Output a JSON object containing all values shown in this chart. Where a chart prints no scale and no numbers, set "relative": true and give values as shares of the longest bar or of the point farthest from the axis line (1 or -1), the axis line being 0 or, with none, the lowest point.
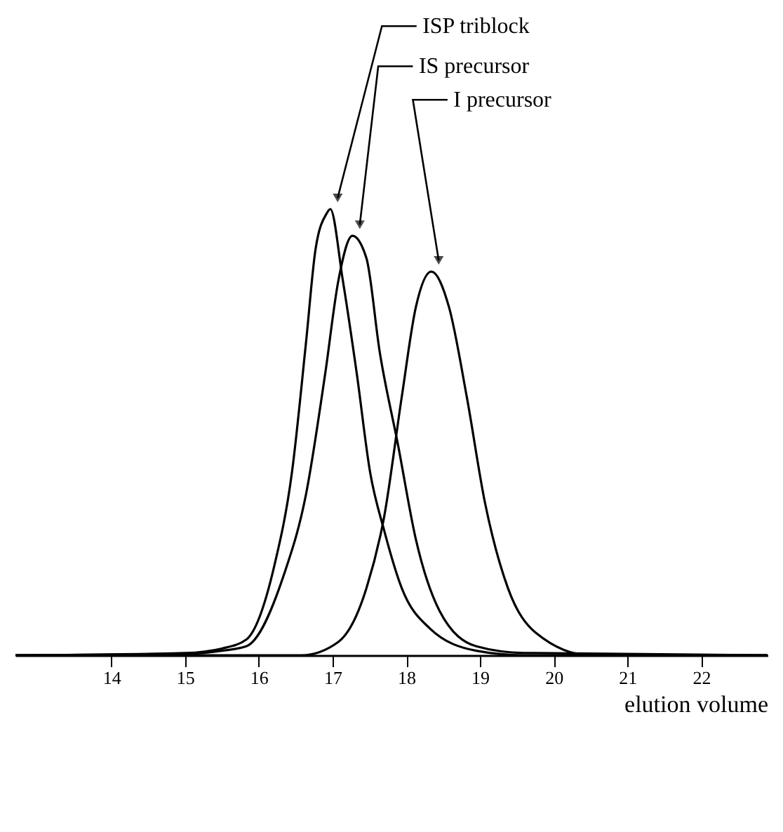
{
  "chart_data": {
    "type": "line",
    "relative": true,
    "xlabel": "elution volume",
    "xlim": [
      12.7,
      22.9
    ],
    "xticks": [
      14,
      15,
      16,
      17,
      18,
      19,
      20,
      21,
      22
    ],
    "tick_labels": "x",
    "grid": false,
    "legend": false,
    "series": [
      {
        "name": "ISP triblock",
        "color": "#000000",
        "x": [
          12.7,
          15.0,
          15.5,
          15.83,
          16.21,
          16.45,
          16.64,
          16.77,
          16.92,
          16.97,
          17.14,
          17.33,
          17.51,
          17.7,
          17.94,
          18.32,
          18.95,
          19.6,
          22.9
        ],
        "values": [
          0,
          0.005,
          0.015,
          0.035,
          0.2,
          0.41,
          0.7,
          0.91,
          0.99,
          1.0,
          0.84,
          0.63,
          0.41,
          0.28,
          0.15,
          0.06,
          0.01,
          0,
          0
        ]
      },
      {
        "name": "IS precursor",
        "color": "#000000",
        "x": [
          12.7,
          15.0,
          15.5,
          15.83,
          16.34,
          16.64,
          16.9,
          17.08,
          17.27,
          17.46,
          17.64,
          17.89,
          18.13,
          18.45,
          18.95,
          19.6,
          22.9
        ],
        "values": [
          0,
          0.003,
          0.01,
          0.02,
          0.18,
          0.36,
          0.63,
          0.84,
          0.94,
          0.89,
          0.68,
          0.47,
          0.26,
          0.1,
          0.02,
          0.005,
          0
        ]
      },
      {
        "name": "I precursor",
        "color": "#000000",
        "x": [
          12.7,
          16.58,
          17.08,
          17.46,
          17.7,
          17.94,
          18.13,
          18.34,
          18.58,
          18.82,
          19.07,
          19.38,
          19.76,
          20.5,
          22.9
        ],
        "values": [
          0,
          0,
          0.03,
          0.15,
          0.31,
          0.58,
          0.78,
          0.86,
          0.78,
          0.58,
          0.34,
          0.15,
          0.05,
          0,
          0
        ]
      }
    ]
  }
}
